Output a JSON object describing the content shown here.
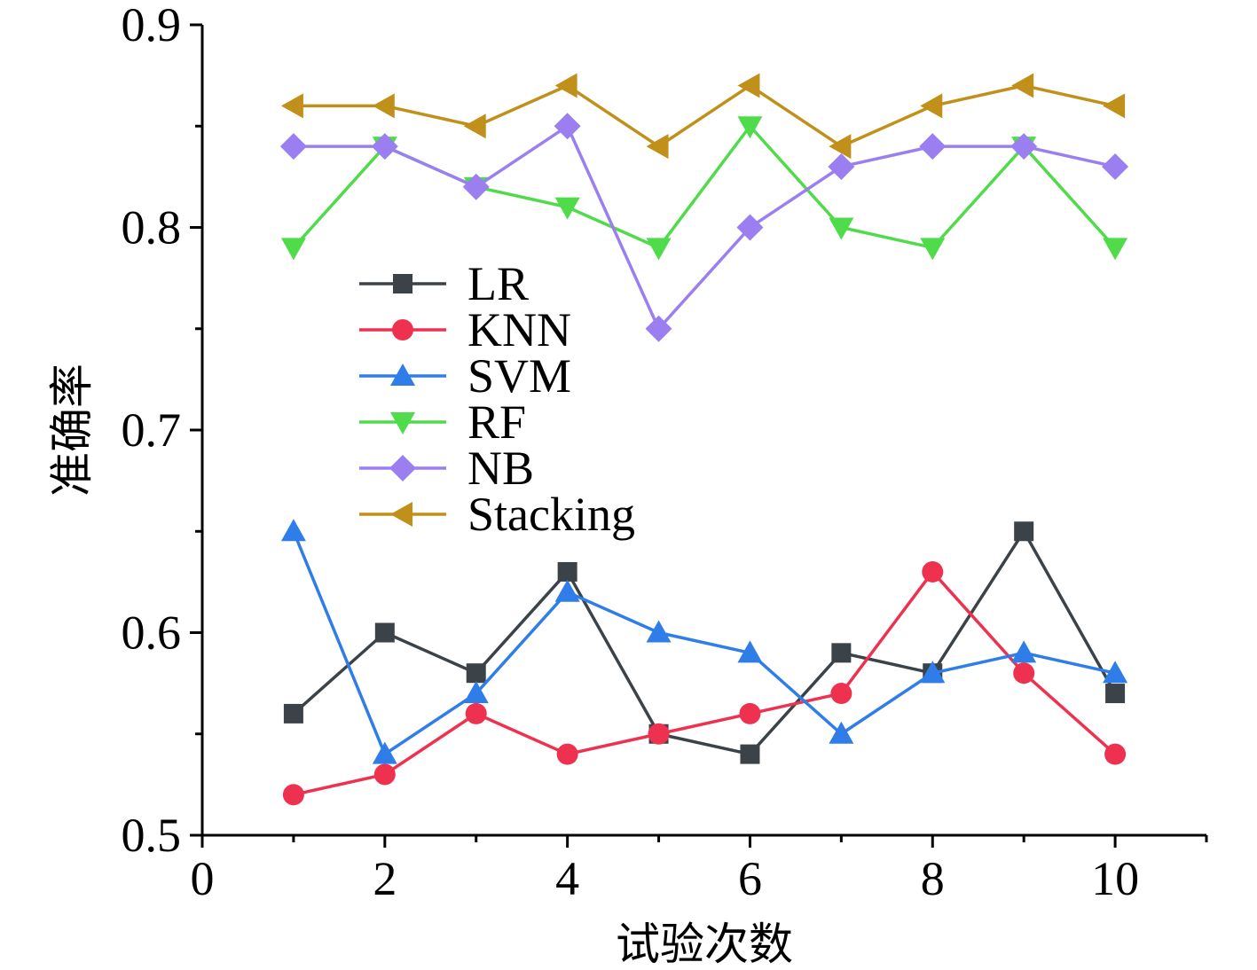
{
  "chart_data": {
    "type": "line",
    "title": "",
    "xlabel": "试验次数",
    "ylabel": "准确率",
    "xlim": [
      0,
      11
    ],
    "ylim": [
      0.5,
      0.9
    ],
    "xticks": [
      0,
      2,
      4,
      6,
      8,
      10
    ],
    "xtick_labels": [
      "0",
      "2",
      "4",
      "6",
      "8",
      "10"
    ],
    "yticks": [
      0.5,
      0.6,
      0.7,
      0.8,
      0.9
    ],
    "ytick_labels": [
      "0.5",
      "0.6",
      "0.7",
      "0.8",
      "0.9"
    ],
    "grid": false,
    "legend_position": "center-left",
    "x": [
      1,
      2,
      3,
      4,
      5,
      6,
      7,
      8,
      9,
      10
    ],
    "series": [
      {
        "name": "LR",
        "marker": "square",
        "color": "#3b4248",
        "values": [
          0.56,
          0.6,
          0.58,
          0.63,
          0.55,
          0.54,
          0.59,
          0.58,
          0.65,
          0.57
        ]
      },
      {
        "name": "KNN",
        "marker": "circle",
        "color": "#ef3150",
        "values": [
          0.52,
          0.53,
          0.56,
          0.54,
          0.55,
          0.56,
          0.57,
          0.63,
          0.58,
          0.54
        ]
      },
      {
        "name": "SVM",
        "marker": "triangle-up",
        "color": "#2f7de8",
        "values": [
          0.65,
          0.54,
          0.57,
          0.62,
          0.6,
          0.59,
          0.55,
          0.58,
          0.59,
          0.58
        ]
      },
      {
        "name": "RF",
        "marker": "triangle-down",
        "color": "#4fdb4a",
        "values": [
          0.79,
          0.84,
          0.82,
          0.81,
          0.79,
          0.85,
          0.8,
          0.79,
          0.84,
          0.79
        ]
      },
      {
        "name": "NB",
        "marker": "diamond",
        "color": "#9b7ff0",
        "values": [
          0.84,
          0.84,
          0.82,
          0.85,
          0.75,
          0.8,
          0.83,
          0.84,
          0.84,
          0.83
        ]
      },
      {
        "name": "Stacking",
        "marker": "triangle-left",
        "color": "#c0901a",
        "values": [
          0.86,
          0.86,
          0.85,
          0.87,
          0.84,
          0.87,
          0.84,
          0.86,
          0.87,
          0.86
        ]
      }
    ]
  }
}
